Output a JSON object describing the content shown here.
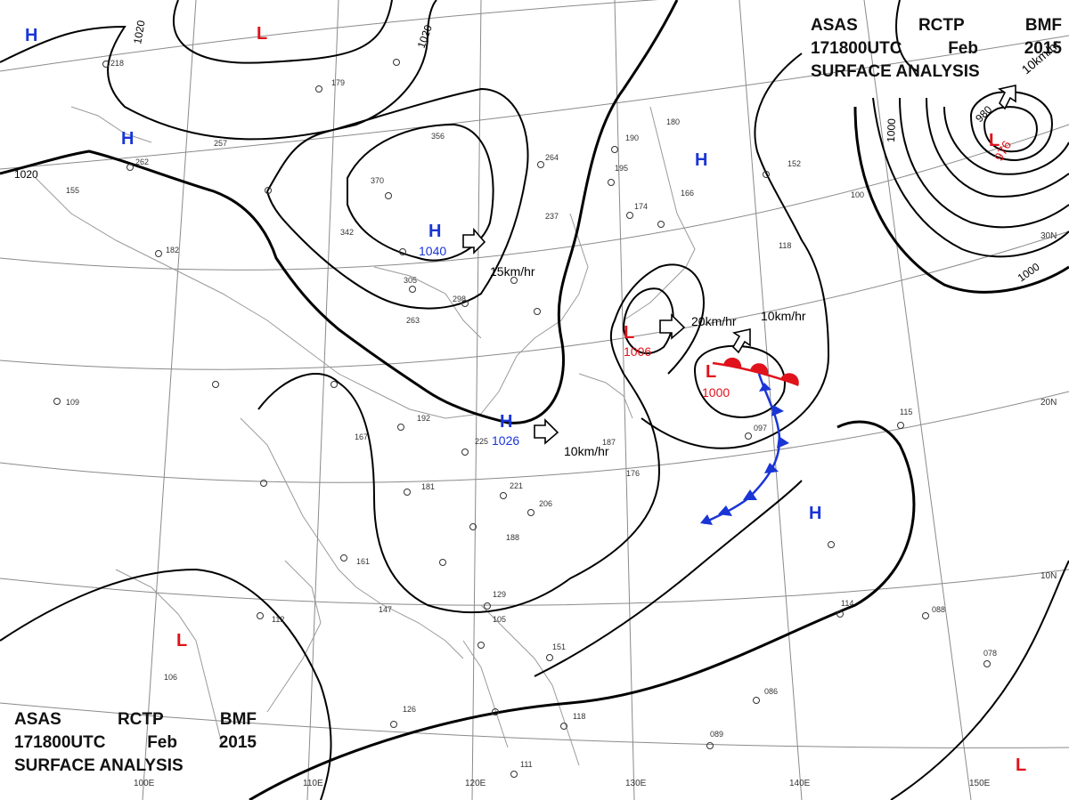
{
  "header": {
    "product_line": [
      "ASAS",
      "RCTP",
      "BMF"
    ],
    "time_line": [
      "171800UTC",
      "Feb",
      "2015"
    ],
    "type_line": "SURFACE ANALYSIS"
  },
  "colors": {
    "high": "#1a35d6",
    "low": "#e0121b",
    "isobar": "#000000",
    "grid": "#8a8a8a",
    "coast": "#9a9a9a",
    "warm_front": "#e0121b",
    "cold_front": "#1a35d6"
  },
  "longitude_labels": [
    "100E",
    "110E",
    "120E",
    "130E",
    "140E",
    "150E"
  ],
  "latitude_labels": [
    "30N",
    "20N",
    "10N"
  ],
  "pressure_centers": [
    {
      "type": "H",
      "label": "H",
      "value": ""
    },
    {
      "type": "H",
      "label": "H",
      "value": ""
    },
    {
      "type": "L",
      "label": "L",
      "value": ""
    },
    {
      "type": "H",
      "label": "H",
      "value": "1040"
    },
    {
      "type": "H",
      "label": "H",
      "value": "1026"
    },
    {
      "type": "H",
      "label": "H",
      "value": ""
    },
    {
      "type": "L",
      "label": "L",
      "value": "1006"
    },
    {
      "type": "L",
      "label": "L",
      "value": "1000"
    },
    {
      "type": "L",
      "label": "L",
      "value": "976"
    },
    {
      "type": "H",
      "label": "H",
      "value": ""
    },
    {
      "type": "L",
      "label": "L",
      "value": ""
    },
    {
      "type": "L",
      "label": "L",
      "value": ""
    }
  ],
  "isobar_labels": [
    "1020",
    "1020",
    "1020",
    "1000",
    "980",
    "1000"
  ],
  "movement_labels": [
    "15km/hr",
    "10km/hr",
    "20km/hr",
    "10km/hr",
    "10km/hr"
  ],
  "station_numbers": [
    "218",
    "179",
    "257",
    "262",
    "155",
    "182",
    "356",
    "370",
    "342",
    "305",
    "263",
    "298",
    "237",
    "264",
    "195",
    "190",
    "180",
    "174",
    "166",
    "152",
    "100",
    "118",
    "167",
    "192",
    "225",
    "187",
    "176",
    "181",
    "221",
    "206",
    "188",
    "161",
    "147",
    "112",
    "106",
    "129",
    "105",
    "151",
    "126",
    "118",
    "115",
    "097",
    "088",
    "078",
    "086",
    "089",
    "114",
    "111",
    "109"
  ]
}
